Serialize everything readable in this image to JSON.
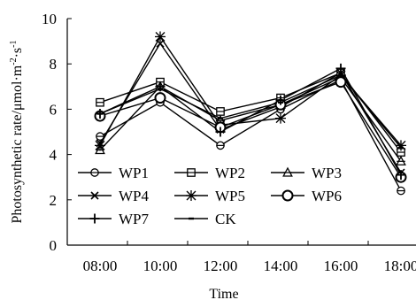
{
  "chart_data": {
    "type": "line",
    "title": "",
    "xlabel": "Time",
    "ylabel": "Photosynthetic rate/μmol·m²·s¹",
    "ylabel_parts": [
      "Photosynthetic rate/μmol·m",
      "-2",
      "·s",
      "-1"
    ],
    "categories": [
      "08:00",
      "10:00",
      "12:00",
      "14:00",
      "16:00",
      "18:00"
    ],
    "ylim": [
      0,
      10
    ],
    "yticks": [
      "0",
      "2",
      "4",
      "6",
      "8",
      "10"
    ],
    "grid": false,
    "legend_position": "bottom-left (inside plot)",
    "series": [
      {
        "name": "WP1",
        "marker": "circle-dot",
        "values": [
          4.8,
          6.3,
          4.4,
          6.0,
          7.3,
          2.4
        ]
      },
      {
        "name": "WP2",
        "marker": "square",
        "values": [
          6.3,
          7.2,
          5.9,
          6.5,
          7.6,
          4.1
        ]
      },
      {
        "name": "WP3",
        "marker": "triangle",
        "values": [
          4.2,
          7.0,
          5.5,
          6.2,
          7.4,
          3.7
        ]
      },
      {
        "name": "WP4",
        "marker": "x",
        "values": [
          4.5,
          8.9,
          5.1,
          6.1,
          7.6,
          3.2
        ]
      },
      {
        "name": "WP5",
        "marker": "star",
        "values": [
          4.4,
          9.2,
          5.3,
          5.6,
          7.5,
          4.4
        ]
      },
      {
        "name": "WP6",
        "marker": "big-circle",
        "values": [
          5.7,
          6.5,
          5.2,
          6.2,
          7.2,
          3.0
        ]
      },
      {
        "name": "WP7",
        "marker": "plus",
        "values": [
          5.8,
          7.0,
          5.0,
          6.4,
          7.8,
          3.1
        ]
      },
      {
        "name": "CK",
        "marker": "dash",
        "values": [
          5.8,
          6.9,
          5.6,
          6.3,
          7.5,
          4.3
        ]
      }
    ]
  }
}
